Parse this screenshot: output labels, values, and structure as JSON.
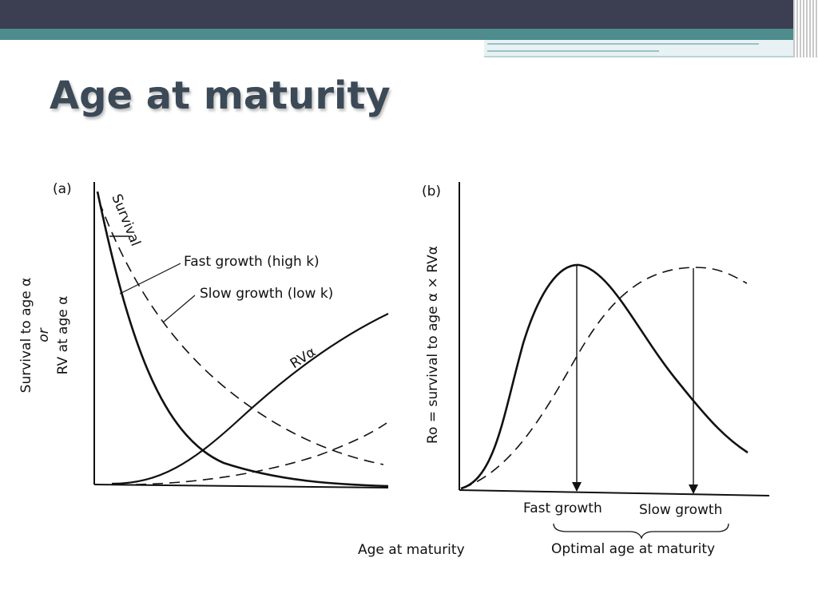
{
  "slide": {
    "title": "Age at maturity"
  },
  "panel_a": {
    "label": "(a)",
    "y_axis_line1": "Survival to age α",
    "y_axis_line2": "or",
    "y_axis_line3": "RV at age α",
    "x_axis_label": "Age at maturity",
    "survival_label": "Survival",
    "fast_label": "Fast growth (high k)",
    "slow_label": "Slow growth (low k)",
    "rv_label": "RVα"
  },
  "panel_b": {
    "label": "(b)",
    "y_axis_label": "Ro = survival to age α × RVα",
    "fast_label": "Fast growth",
    "slow_label": "Slow growth",
    "optimal_label": "Optimal age at maturity"
  },
  "colors": {
    "top_band": "#3c3f52",
    "teal_band": "#4e8c8e",
    "title": "#3c4a57",
    "ink": "#111111"
  }
}
